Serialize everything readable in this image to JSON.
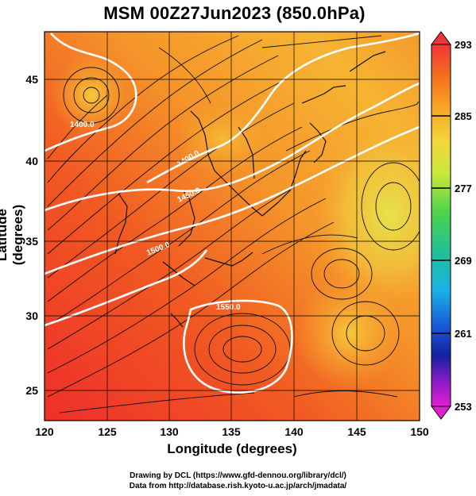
{
  "title": "MSM 00Z27Jun2023 (850.0hPa)",
  "axes": {
    "xlabel": "Longitude (degrees)",
    "ylabel": "Latitude  (degrees)",
    "x_ticks": [
      "120",
      "125",
      "130",
      "135",
      "140",
      "145",
      "150"
    ],
    "y_ticks": [
      "25",
      "30",
      "35",
      "40",
      "45"
    ]
  },
  "colorbar": {
    "ticks": [
      "293",
      "285",
      "277",
      "269",
      "261",
      "253"
    ],
    "colors": [
      "#f0343c",
      "#f56a1e",
      "#f7a326",
      "#f2d83a",
      "#c8e83a",
      "#4fd44a",
      "#1fbf9a",
      "#19b2e6",
      "#1a58d6",
      "#1420a0",
      "#8a1cc8",
      "#e020d0"
    ]
  },
  "contour_labels": [
    "1400.0",
    "1400.0",
    "1450.0",
    "1450.0",
    "1500.0",
    "1550.0"
  ],
  "footer": {
    "line1": "Drawing by DCL (https://www.gfd-dennou.org/library/dcl/)",
    "line2": "Data from http://database.rish.kyoto-u.ac.jp/arch/jmadata/"
  },
  "colors": {
    "warm": "#f14a2a",
    "mid": "#f6a630",
    "cool": "#e8e33e",
    "contour": "#ffffff",
    "streamline": "#111111"
  }
}
